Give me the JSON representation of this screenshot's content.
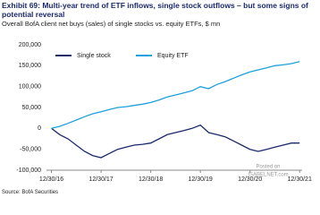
{
  "chart_data": {
    "type": "line",
    "title": "Exhibit 69: Multi-year trend of ETF inflows, single stock outflows – but some signs of potential reversal",
    "subtitle": "Overall BofA client net buys (sales) of single stocks vs. equity ETFs, $ mn",
    "source": "Source: BofA Securities",
    "annotations": [
      "Posted on",
      "ISABELNET.com"
    ],
    "x": [
      2017,
      2017.1667,
      2017.3333,
      2017.5,
      2017.6667,
      2017.8333,
      2018,
      2018.1667,
      2018.3333,
      2018.5,
      2018.6667,
      2018.8333,
      2019,
      2019.1667,
      2019.3333,
      2019.5,
      2019.6667,
      2019.8333,
      2020,
      2020.1667,
      2020.3333,
      2020.5,
      2020.6667,
      2020.8333,
      2021,
      2021.1667,
      2021.3333,
      2021.5,
      2021.6667,
      2021.8333,
      2022
    ],
    "series": [
      {
        "name": "Single stock",
        "color": "#1b2a6b",
        "values": [
          0,
          -15000,
          -25000,
          -40000,
          -55000,
          -65000,
          -70000,
          -60000,
          -50000,
          -45000,
          -40000,
          -38000,
          -35000,
          -25000,
          -15000,
          -10000,
          -5000,
          0,
          8000,
          -10000,
          -15000,
          -20000,
          -30000,
          -40000,
          -50000,
          -55000,
          -50000,
          -45000,
          -40000,
          -35000,
          -35000
        ]
      },
      {
        "name": "Equity ETF",
        "color": "#1ea0dc",
        "values": [
          0,
          5000,
          12000,
          20000,
          28000,
          35000,
          40000,
          45000,
          50000,
          52000,
          55000,
          58000,
          62000,
          68000,
          75000,
          80000,
          85000,
          90000,
          100000,
          95000,
          105000,
          112000,
          120000,
          128000,
          135000,
          140000,
          145000,
          150000,
          152000,
          155000,
          160000
        ]
      }
    ],
    "xlim": [
      2016.9,
      2022.05
    ],
    "xticks": [
      {
        "value": 2017,
        "label": "12/30/16"
      },
      {
        "value": 2018,
        "label": "12/30/17"
      },
      {
        "value": 2019,
        "label": "12/30/18"
      },
      {
        "value": 2020,
        "label": "12/30/19"
      },
      {
        "value": 2021,
        "label": "12/30/20"
      },
      {
        "value": 2022,
        "label": "12/30/21"
      }
    ],
    "ylim": [
      -100000,
      200000
    ],
    "yticks": [
      {
        "value": -100000,
        "label": "-100,000"
      },
      {
        "value": -50000,
        "label": "-50,000"
      },
      0,
      {
        "value": 50000,
        "label": "50,000"
      },
      {
        "value": 100000,
        "label": "100,000"
      },
      {
        "value": 150000,
        "label": "150,000"
      },
      {
        "value": 200000,
        "label": "200,000"
      }
    ],
    "grid": false
  }
}
